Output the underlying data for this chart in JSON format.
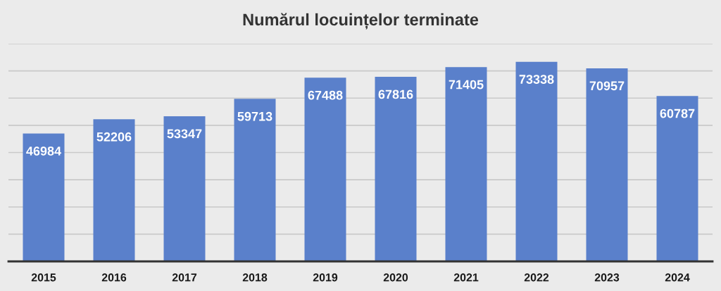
{
  "chart_data": {
    "type": "bar",
    "title": "Numărul locuințelor terminate",
    "categories": [
      "2015",
      "2016",
      "2017",
      "2018",
      "2019",
      "2020",
      "2021",
      "2022",
      "2023",
      "2024"
    ],
    "values": [
      46984,
      52206,
      53347,
      59713,
      67488,
      67816,
      71405,
      73338,
      70957,
      60787
    ],
    "color": "#5a80cb",
    "ylim": [
      0,
      80000
    ],
    "yticks": [
      {
        "value": 0,
        "label": null
      },
      {
        "value": 10000,
        "label": null
      },
      {
        "value": 20000,
        "label": null
      },
      {
        "value": 30000,
        "label": null
      },
      {
        "value": 40000,
        "label": null
      },
      {
        "value": 50000,
        "label": null
      },
      {
        "value": 60000,
        "label": null
      },
      {
        "value": 70000,
        "label": null
      },
      {
        "value": 80000,
        "label": null
      }
    ],
    "grid": "y",
    "tick_labels": "x",
    "data_labels": true
  }
}
